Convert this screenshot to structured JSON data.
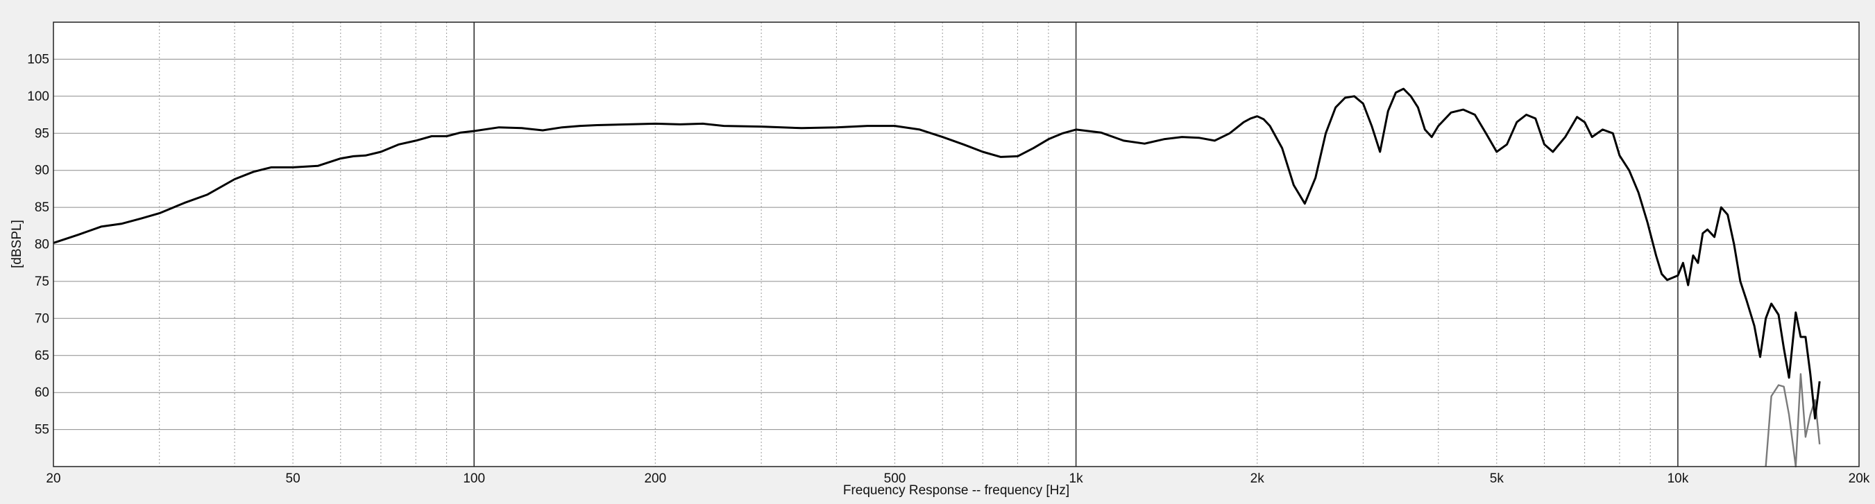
{
  "chart_data": {
    "type": "line",
    "title": "",
    "xlabel": "Frequency Response -- frequency [Hz]",
    "ylabel": "[dBSPL]",
    "x_scale": "log",
    "xlim": [
      20,
      20000
    ],
    "ylim": [
      50,
      110
    ],
    "grid": true,
    "legend": "none",
    "x_ticks": [
      {
        "value": 20,
        "label": "20"
      },
      {
        "value": 50,
        "label": "50"
      },
      {
        "value": 100,
        "label": "100"
      },
      {
        "value": 200,
        "label": "200"
      },
      {
        "value": 500,
        "label": "500"
      },
      {
        "value": 1000,
        "label": "1k"
      },
      {
        "value": 2000,
        "label": "2k"
      },
      {
        "value": 5000,
        "label": "5k"
      },
      {
        "value": 10000,
        "label": "10k"
      },
      {
        "value": 20000,
        "label": "20k"
      }
    ],
    "y_ticks": [
      55,
      60,
      65,
      70,
      75,
      80,
      85,
      90,
      95,
      100,
      105
    ],
    "series": [
      {
        "color": "#000000",
        "x": [
          20,
          22,
          24,
          26,
          28,
          30,
          33,
          36,
          40,
          43,
          46,
          50,
          55,
          60,
          63,
          66,
          70,
          75,
          80,
          85,
          90,
          95,
          100,
          110,
          120,
          130,
          140,
          150,
          160,
          180,
          200,
          220,
          240,
          260,
          300,
          350,
          400,
          450,
          500,
          550,
          600,
          650,
          700,
          750,
          800,
          850,
          900,
          950,
          1000,
          1100,
          1200,
          1300,
          1400,
          1500,
          1600,
          1700,
          1800,
          1900,
          1950,
          2000,
          2050,
          2100,
          2200,
          2300,
          2400,
          2500,
          2600,
          2700,
          2800,
          2900,
          3000,
          3100,
          3200,
          3300,
          3400,
          3500,
          3600,
          3700,
          3800,
          3900,
          4000,
          4200,
          4400,
          4600,
          4800,
          5000,
          5200,
          5400,
          5600,
          5800,
          6000,
          6200,
          6500,
          6800,
          7000,
          7200,
          7500,
          7800,
          8000,
          8300,
          8600,
          8900,
          9200,
          9400,
          9600,
          9800,
          10000,
          10200,
          10400,
          10600,
          10800,
          11000,
          11200,
          11500,
          11800,
          12100,
          12400,
          12700,
          13000,
          13400,
          13700,
          14000,
          14300,
          14700,
          15000,
          15300,
          15700,
          16000,
          16300,
          16600,
          16900,
          17200
        ],
        "y": [
          80.2,
          81.3,
          82.4,
          82.8,
          83.5,
          84.2,
          85.6,
          86.7,
          88.8,
          89.8,
          90.4,
          90.4,
          90.6,
          91.6,
          91.9,
          92.0,
          92.5,
          93.5,
          94.0,
          94.6,
          94.6,
          95.1,
          95.3,
          95.8,
          95.7,
          95.4,
          95.8,
          96.0,
          96.1,
          96.2,
          96.3,
          96.2,
          96.3,
          96.0,
          95.9,
          95.7,
          95.8,
          96.0,
          96.0,
          95.5,
          94.5,
          93.5,
          92.5,
          91.8,
          91.9,
          93.0,
          94.2,
          95.0,
          95.5,
          95.1,
          94.0,
          93.6,
          94.2,
          94.5,
          94.4,
          94.0,
          95.0,
          96.5,
          97.0,
          97.3,
          96.9,
          96.0,
          93.0,
          88.0,
          85.5,
          89.0,
          95.0,
          98.5,
          99.8,
          100.0,
          99.0,
          96.0,
          92.5,
          98.0,
          100.5,
          101.0,
          100.0,
          98.5,
          95.5,
          94.5,
          96.0,
          97.8,
          98.2,
          97.5,
          95.0,
          92.5,
          93.5,
          96.5,
          97.5,
          97.0,
          93.5,
          92.5,
          94.5,
          97.2,
          96.5,
          94.5,
          95.5,
          95.0,
          92.0,
          90.0,
          87.0,
          83.0,
          78.5,
          76.0,
          75.2,
          75.5,
          75.8,
          77.5,
          74.5,
          78.5,
          77.5,
          81.5,
          82.0,
          81.0,
          85.0,
          84.0,
          80.0,
          75.0,
          72.5,
          69.0,
          64.8,
          70.0,
          72.0,
          70.5,
          66.0,
          62.0,
          70.8,
          67.5,
          67.5,
          62.5,
          56.5,
          61.5
        ],
        "tail_x": [
          14000,
          14300,
          14700,
          15000,
          15300,
          15700,
          16000,
          16300,
          16600,
          16900,
          17200
        ],
        "tail_y": [
          50.0,
          59.5,
          61.0,
          60.8,
          57.0,
          50.0,
          62.5,
          54.0,
          57.0,
          59.0,
          53.0
        ]
      }
    ]
  }
}
